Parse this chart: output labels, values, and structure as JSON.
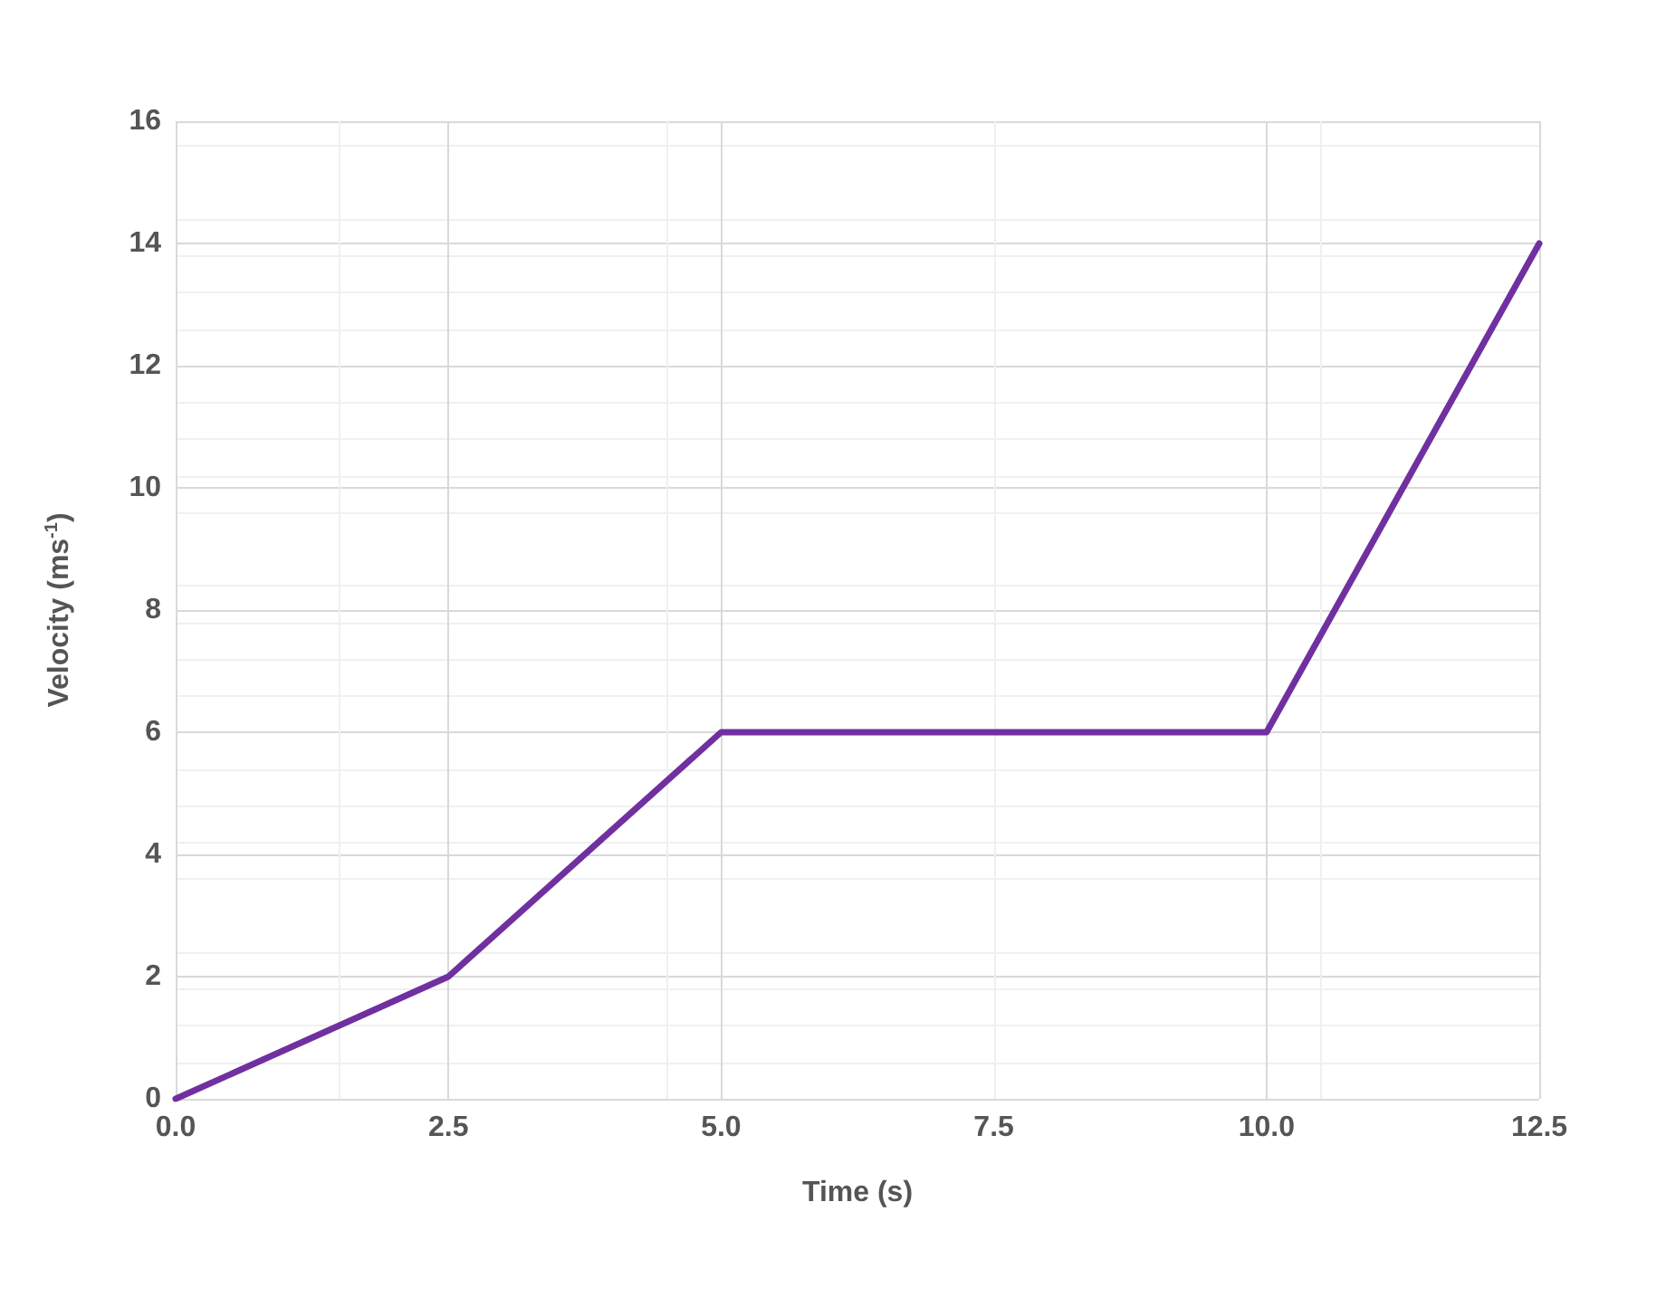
{
  "chart_data": {
    "type": "line",
    "xlabel": "Time (s)",
    "ylabel": "Velocity (ms$^{-1}$)",
    "x": [
      0,
      2.5,
      5,
      10,
      12.5
    ],
    "series": [
      {
        "color": "#7030a0",
        "values": [
          0,
          2,
          6,
          6,
          14
        ]
      }
    ],
    "xlim": [
      0,
      12.5
    ],
    "xticks": [
      {
        "value": 0,
        "label": "0.0"
      },
      2.5,
      {
        "value": 5,
        "label": "5.0"
      },
      7.5,
      {
        "value": 10,
        "label": "10.0"
      },
      12.5
    ],
    "ylim": [
      0,
      16
    ],
    "yticks": [
      0,
      2,
      4,
      6,
      8,
      10,
      12,
      14,
      16
    ],
    "grid": true,
    "marker": "none"
  }
}
